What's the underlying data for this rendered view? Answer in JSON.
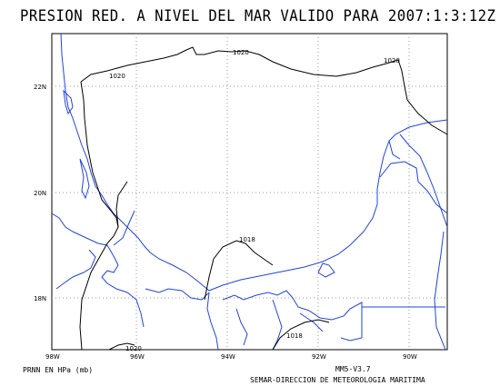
{
  "title": "PRESION RED. A NIVEL DEL MAR VALIDO PARA 2007:1:3:12Z",
  "axes": {
    "lat_labels": [
      "22N",
      "20N",
      "18N"
    ],
    "lon_labels": [
      "98W",
      "96W",
      "94W",
      "92W",
      "90W"
    ]
  },
  "isobars": {
    "labels": [
      "1020",
      "1020",
      "1020",
      "1018",
      "1018",
      "1020"
    ]
  },
  "footer": {
    "left": "PRNN EN HPa (mb)",
    "right_line1": "MM5-V3.7",
    "right_line2": "SEMAR-DIRECCION DE METEOROLOGIA MARITIMA"
  },
  "colors": {
    "coastline": "#2244dd",
    "isobar": "#000000",
    "grid": "#999999"
  }
}
